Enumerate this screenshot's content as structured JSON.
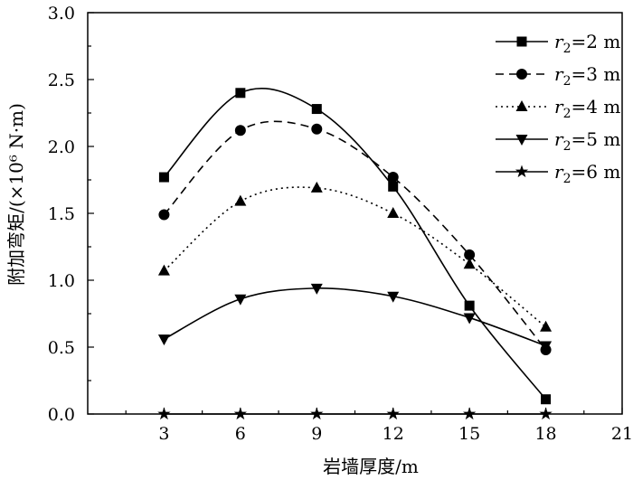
{
  "chart_data": {
    "type": "line",
    "title": "",
    "xlabel": "岩墙厚度/m",
    "ylabel": "附加弯矩/(×10⁶ N·m)",
    "xlim": [
      0,
      21
    ],
    "ylim": [
      0,
      3.0
    ],
    "xticks": [
      3,
      6,
      9,
      12,
      15,
      18,
      21
    ],
    "yticks": [
      0.0,
      0.5,
      1.0,
      1.5,
      2.0,
      2.5,
      3.0
    ],
    "xtick_labels": [
      "3",
      "6",
      "9",
      "12",
      "15",
      "18",
      "21"
    ],
    "ytick_labels": [
      "0.0",
      "0.5",
      "1.0",
      "1.5",
      "2.0",
      "2.5",
      "3.0"
    ],
    "legend_position": "top-right",
    "x": [
      3,
      6,
      9,
      12,
      15,
      18
    ],
    "series": [
      {
        "name": "r2=2 m",
        "label_parts": [
          "r",
          "2",
          "=2 m"
        ],
        "marker": "square",
        "line_style": "solid",
        "values": [
          1.77,
          2.4,
          2.28,
          1.7,
          0.81,
          0.11
        ]
      },
      {
        "name": "r2=3 m",
        "label_parts": [
          "r",
          "2",
          "=3 m"
        ],
        "marker": "circle",
        "line_style": "dashed",
        "values": [
          1.49,
          2.12,
          2.13,
          1.77,
          1.19,
          0.48
        ]
      },
      {
        "name": "r2=4 m",
        "label_parts": [
          "r",
          "2",
          "=4 m"
        ],
        "marker": "triangle-up",
        "line_style": "dotted",
        "values": [
          1.07,
          1.59,
          1.69,
          1.5,
          1.12,
          0.65
        ]
      },
      {
        "name": "r2=5 m",
        "label_parts": [
          "r",
          "2",
          "=5 m"
        ],
        "marker": "triangle-down",
        "line_style": "solid",
        "values": [
          0.56,
          0.86,
          0.94,
          0.88,
          0.72,
          0.51
        ]
      },
      {
        "name": "r2=6 m",
        "label_parts": [
          "r",
          "2",
          "=6 m"
        ],
        "marker": "star",
        "line_style": "solid",
        "values": [
          0.0,
          0.0,
          0.0,
          0.0,
          0.0,
          0.0
        ]
      }
    ]
  }
}
